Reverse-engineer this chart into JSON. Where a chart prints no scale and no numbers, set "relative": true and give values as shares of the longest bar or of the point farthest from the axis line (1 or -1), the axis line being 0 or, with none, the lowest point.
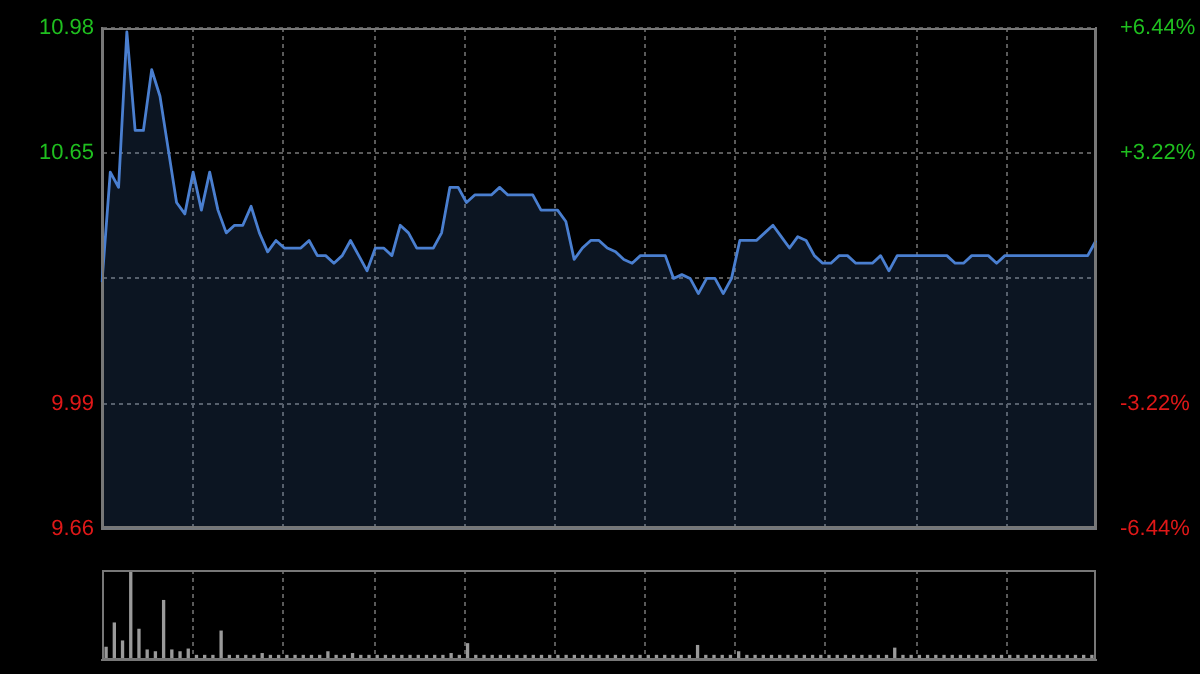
{
  "chart_data": [
    {
      "type": "area",
      "categories": [
        null,
        null,
        null,
        null,
        null,
        null,
        null,
        null,
        null,
        null,
        null,
        null,
        null,
        null,
        null,
        null,
        null,
        null,
        null,
        null,
        null,
        null,
        null,
        null,
        null,
        null,
        null,
        null,
        null,
        null,
        null,
        null,
        null,
        null,
        null,
        null,
        null,
        null,
        null,
        null,
        null,
        null,
        null,
        null,
        null,
        null,
        null,
        null,
        null,
        null,
        null,
        null,
        null,
        null,
        null,
        null,
        null,
        null,
        null,
        null,
        null,
        null,
        null,
        null,
        null,
        null,
        null,
        null,
        null,
        null,
        null,
        null,
        null,
        null,
        null,
        null,
        null,
        null,
        null,
        null,
        null,
        null,
        null,
        null,
        null,
        null,
        null,
        null,
        null,
        null,
        null,
        null,
        null,
        null,
        null,
        null,
        null,
        null,
        null,
        null,
        null,
        null,
        null,
        null,
        null,
        null,
        null,
        null,
        null,
        null,
        null,
        null,
        null,
        null,
        null,
        null,
        null,
        null,
        null,
        null,
        null
      ],
      "ylim": [
        9.66,
        10.98
      ],
      "yticks": [
        9.66,
        9.99,
        {
          "value": 10.32,
          "label": null
        },
        10.65,
        10.98
      ],
      "y2lim": [
        -6.44,
        6.44
      ],
      "y2ticks": [
        {
          "value": -6.44,
          "label": "-6.44%"
        },
        {
          "value": -3.22,
          "label": "-3.22%"
        },
        {
          "value": 3.22,
          "label": "+3.22%"
        },
        {
          "value": 6.44,
          "label": "+6.44%"
        }
      ],
      "grid": true,
      "marker": "none",
      "series": [
        {
          "color": "#4a7fd0",
          "values": [
            10.31,
            10.6,
            10.56,
            10.97,
            10.71,
            10.71,
            10.87,
            10.8,
            10.66,
            10.52,
            10.49,
            10.6,
            10.5,
            10.6,
            10.5,
            10.44,
            10.46,
            10.46,
            10.51,
            10.44,
            10.39,
            10.42,
            10.4,
            10.4,
            10.4,
            10.42,
            10.38,
            10.38,
            10.36,
            10.38,
            10.42,
            10.38,
            10.34,
            10.4,
            10.4,
            10.38,
            10.46,
            10.44,
            10.4,
            10.4,
            10.4,
            10.44,
            10.56,
            10.56,
            10.52,
            10.54,
            10.54,
            10.54,
            10.56,
            10.54,
            10.54,
            10.54,
            10.54,
            10.5,
            10.5,
            10.5,
            10.47,
            10.37,
            10.4,
            10.42,
            10.42,
            10.4,
            10.39,
            10.37,
            10.36,
            10.38,
            10.38,
            10.38,
            10.38,
            10.32,
            10.33,
            10.32,
            10.28,
            10.32,
            10.32,
            10.28,
            10.32,
            10.42,
            10.42,
            10.42,
            10.44,
            10.46,
            10.43,
            10.4,
            10.43,
            10.42,
            10.38,
            10.36,
            10.36,
            10.38,
            10.38,
            10.36,
            10.36,
            10.36,
            10.38,
            10.34,
            10.38,
            10.38,
            10.38,
            10.38,
            10.38,
            10.38,
            10.38,
            10.36,
            10.36,
            10.38,
            10.38,
            10.38,
            10.36,
            10.38,
            10.38,
            10.38,
            10.38,
            10.38,
            10.38,
            10.38,
            10.38,
            10.38,
            10.38,
            10.38,
            10.42
          ]
        }
      ]
    },
    {
      "type": "bar",
      "relative": true,
      "categories": [
        null,
        null,
        null,
        null,
        null,
        null,
        null,
        null,
        null,
        null,
        null,
        null,
        null,
        null,
        null,
        null,
        null,
        null,
        null,
        null,
        null,
        null,
        null,
        null,
        null,
        null,
        null,
        null,
        null,
        null,
        null,
        null,
        null,
        null,
        null,
        null,
        null,
        null,
        null,
        null,
        null,
        null,
        null,
        null,
        null,
        null,
        null,
        null,
        null,
        null,
        null,
        null,
        null,
        null,
        null,
        null,
        null,
        null,
        null,
        null,
        null,
        null,
        null,
        null,
        null,
        null,
        null,
        null,
        null,
        null,
        null,
        null,
        null,
        null,
        null,
        null,
        null,
        null,
        null,
        null,
        null,
        null,
        null,
        null,
        null,
        null,
        null,
        null,
        null,
        null,
        null,
        null,
        null,
        null,
        null,
        null,
        null,
        null,
        null,
        null,
        null,
        null,
        null,
        null,
        null,
        null,
        null,
        null,
        null,
        null,
        null,
        null,
        null,
        null,
        null,
        null,
        null,
        null,
        null,
        null,
        null
      ],
      "grid": "x",
      "series": [
        {
          "color": "#9a9a9a",
          "values": [
            0.14,
            0.41,
            0.21,
            1,
            0.34,
            0.11,
            0.09,
            0.66,
            0.11,
            0.09,
            0.12,
            0.05,
            0.05,
            0.05,
            0.32,
            0.05,
            0.05,
            0.05,
            0.05,
            0.07,
            0.05,
            0.05,
            0.05,
            0.05,
            0.05,
            0.05,
            0.05,
            0.09,
            0.05,
            0.05,
            0.07,
            0.05,
            0.05,
            0.05,
            0.05,
            0.05,
            0.05,
            0.05,
            0.05,
            0.05,
            0.05,
            0.05,
            0.07,
            0.05,
            0.18,
            0.05,
            0.05,
            0.05,
            0.05,
            0.05,
            0.05,
            0.05,
            0.05,
            0.05,
            0.05,
            0.05,
            0.05,
            0.05,
            0.05,
            0.05,
            0.05,
            0.05,
            0.05,
            0.05,
            0.05,
            0.05,
            0.05,
            0.05,
            0.05,
            0.05,
            0.05,
            0.05,
            0.16,
            0.05,
            0.05,
            0.05,
            0.05,
            0.09,
            0.05,
            0.05,
            0.05,
            0.05,
            0.05,
            0.05,
            0.05,
            0.05,
            0.05,
            0.05,
            0.05,
            0.05,
            0.05,
            0.05,
            0.05,
            0.05,
            0.05,
            0.05,
            0.13,
            0.05,
            0.05,
            0.05,
            0.05,
            0.05,
            0.05,
            0.05,
            0.05,
            0.05,
            0.05,
            0.05,
            0.05,
            0.05,
            0.05,
            0.05,
            0.05,
            0.05,
            0.05,
            0.05,
            0.05,
            0.05,
            0.05,
            0.05,
            0.05
          ]
        }
      ]
    }
  ]
}
